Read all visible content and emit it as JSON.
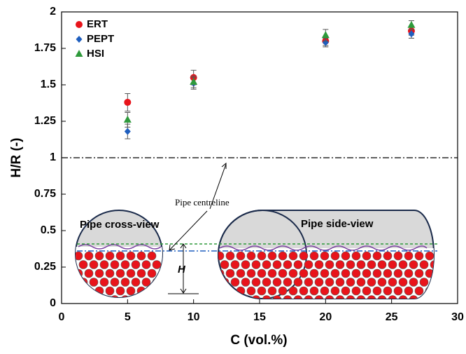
{
  "chart_data": {
    "type": "scatter",
    "x_label": "C (vol.%)",
    "y_label": "H/R (-)",
    "xlim": [
      0,
      30
    ],
    "xticks": [
      0,
      5,
      10,
      15,
      20,
      25,
      30
    ],
    "ylim": [
      0,
      2
    ],
    "yticks": [
      0,
      0.25,
      0.5,
      0.75,
      1,
      1.25,
      1.5,
      1.75,
      2
    ],
    "legend": "top-left",
    "series": [
      {
        "name": "ERT",
        "color": "#e8141b",
        "marker": "circle",
        "x": [
          5,
          10,
          20,
          26.5
        ],
        "values": [
          1.38,
          1.55,
          1.8,
          1.87
        ],
        "errors": [
          0.06,
          0.05,
          0.03,
          0.03
        ]
      },
      {
        "name": "PEPT",
        "color": "#1f5fbf",
        "marker": "diamond",
        "x": [
          5,
          10,
          20,
          26.5
        ],
        "values": [
          1.18,
          1.51,
          1.79,
          1.85
        ],
        "errors": [
          0.05,
          0.04,
          0.03,
          0.03
        ]
      },
      {
        "name": "HSI",
        "color": "#2e9a3b",
        "marker": "triangle",
        "x": [
          5,
          10,
          20,
          26.5
        ],
        "values": [
          1.26,
          1.52,
          1.84,
          1.91
        ],
        "errors": [
          0.05,
          0.04,
          0.04,
          0.03
        ]
      }
    ],
    "centreline": {
      "value": 1,
      "label": "Pipe centreline"
    },
    "annotations": [
      "Pipe cross-view",
      "Pipe side-view",
      "H"
    ]
  }
}
